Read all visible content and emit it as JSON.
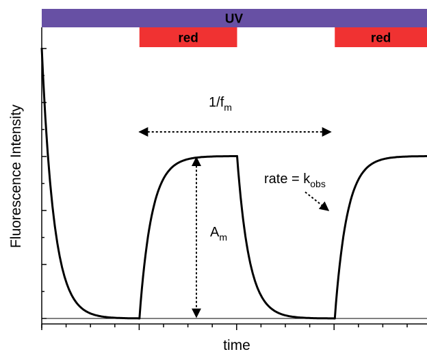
{
  "chart_data": {
    "type": "line",
    "xlabel": "time",
    "ylabel": "Fluorescence Intensity",
    "grid": false,
    "xlim": [
      0,
      10
    ],
    "ylim": [
      0,
      1
    ],
    "illumination": [
      {
        "label": "UV",
        "start": 0,
        "end": 10,
        "color": "#6750a4"
      },
      {
        "label": "red",
        "start": 2.5,
        "end": 5.0,
        "color": "#f03232"
      },
      {
        "label": "red",
        "start": 7.5,
        "end": 10,
        "color": "#f03232"
      }
    ],
    "series": [
      {
        "shape": "exponential switching",
        "segments": [
          {
            "kind": "decay",
            "x_start": 0,
            "x_end": 2.45,
            "y_from": 1.0,
            "y_to": 0.0
          },
          {
            "kind": "rise",
            "x_start": 2.5,
            "x_end": 5.0,
            "y_from": 0.0,
            "y_to": 0.6
          },
          {
            "kind": "decay",
            "x_start": 5.0,
            "x_end": 7.45,
            "y_from": 0.6,
            "y_to": 0.0
          },
          {
            "kind": "rise",
            "x_start": 7.5,
            "x_end": 10,
            "y_from": 0.0,
            "y_to": 0.6
          }
        ]
      }
    ],
    "annotations": [
      {
        "text": "1/f",
        "sub": "m",
        "arrow": "double-horizontal",
        "x_from": 2.5,
        "x_to": 7.5,
        "y": 0.7
      },
      {
        "text": "A",
        "sub": "m",
        "arrow": "double-vertical",
        "x": 3.95,
        "y_from": 0.0,
        "y_to": 0.6
      },
      {
        "text": "rate = k",
        "sub": "obs",
        "arrow": "pointer",
        "points_to_x": 7.6,
        "points_to_y": 0.4
      }
    ]
  }
}
